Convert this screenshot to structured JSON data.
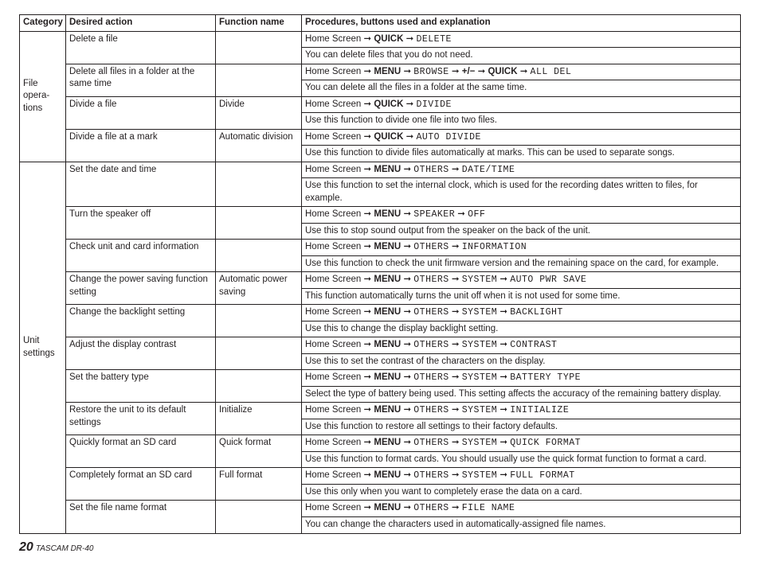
{
  "headers": {
    "category": "Category",
    "action": "Desired action",
    "func": "Function name",
    "proc": "Procedures, buttons used and explanation"
  },
  "groups": [
    {
      "category": "File opera­tions",
      "rows": [
        {
          "action": "Delete a file",
          "func": "",
          "path": [
            [
              "t",
              "Home Screen "
            ],
            [
              "a",
              " "
            ],
            [
              "b",
              "QUICK"
            ],
            [
              "a",
              " "
            ],
            [
              "m",
              "DELETE"
            ]
          ],
          "expl": "You can delete files that you do not need."
        },
        {
          "action": "Delete all files in a folder at the same time",
          "func": "",
          "path": [
            [
              "t",
              "Home Screen "
            ],
            [
              "a",
              " "
            ],
            [
              "b",
              "MENU"
            ],
            [
              "a",
              " "
            ],
            [
              "m",
              "BROWSE"
            ],
            [
              "a",
              " "
            ],
            [
              "b",
              "+/−"
            ],
            [
              "a",
              " "
            ],
            [
              "b",
              "QUICK"
            ],
            [
              "a",
              " "
            ],
            [
              "m",
              "ALL DEL"
            ]
          ],
          "expl": "You can delete all the files in a folder at the same time."
        },
        {
          "action": "Divide a file",
          "func": "Divide",
          "path": [
            [
              "t",
              "Home Screen "
            ],
            [
              "a",
              " "
            ],
            [
              "b",
              "QUICK"
            ],
            [
              "a",
              " "
            ],
            [
              "m",
              "DIVIDE"
            ]
          ],
          "expl": "Use this function to divide one file into two files."
        },
        {
          "action": "Divide a file at a mark",
          "func": "Automatic division",
          "path": [
            [
              "t",
              "Home Screen "
            ],
            [
              "a",
              " "
            ],
            [
              "b",
              "QUICK"
            ],
            [
              "a",
              " "
            ],
            [
              "m",
              "AUTO DIVIDE"
            ]
          ],
          "expl": "Use this function to divide files automatically at marks. This can be used to separate songs."
        }
      ]
    },
    {
      "category": "Unit settings",
      "rows": [
        {
          "action": "Set the date and time",
          "func": "",
          "path": [
            [
              "t",
              "Home Screen "
            ],
            [
              "a",
              " "
            ],
            [
              "b",
              "MENU"
            ],
            [
              "a",
              " "
            ],
            [
              "m",
              "OTHERS"
            ],
            [
              "a",
              " "
            ],
            [
              "m",
              "DATE/TIME"
            ]
          ],
          "expl": "Use this function to set the internal clock, which is used for the recording dates written to files, for example."
        },
        {
          "action": "Turn the speaker off",
          "func": "",
          "path": [
            [
              "t",
              "Home Screen "
            ],
            [
              "a",
              " "
            ],
            [
              "b",
              "MENU"
            ],
            [
              "a",
              " "
            ],
            [
              "m",
              "SPEAKER"
            ],
            [
              "a",
              " "
            ],
            [
              "m",
              "OFF"
            ]
          ],
          "expl": "Use this to stop sound output from the speaker on the back of the unit."
        },
        {
          "action": "Check unit and card information",
          "func": "",
          "path": [
            [
              "t",
              "Home Screen "
            ],
            [
              "a",
              " "
            ],
            [
              "b",
              "MENU"
            ],
            [
              "a",
              " "
            ],
            [
              "m",
              "OTHERS"
            ],
            [
              "a",
              " "
            ],
            [
              "m",
              "INFORMATION"
            ]
          ],
          "expl": "Use this function to check the unit firmware version and the remaining space on the card, for example."
        },
        {
          "action": "Change the power saving function setting",
          "func": "Automatic power saving",
          "path": [
            [
              "t",
              "Home Screen "
            ],
            [
              "a",
              " "
            ],
            [
              "b",
              "MENU"
            ],
            [
              "a",
              " "
            ],
            [
              "m",
              "OTHERS"
            ],
            [
              "a",
              " "
            ],
            [
              "m",
              "SYSTEM"
            ],
            [
              "a",
              " "
            ],
            [
              "m",
              "AUTO PWR SAVE"
            ]
          ],
          "expl": "This function automatically turns the unit off when it is not used for some time."
        },
        {
          "action": "Change the backlight setting",
          "func": "",
          "path": [
            [
              "t",
              "Home Screen "
            ],
            [
              "a",
              " "
            ],
            [
              "b",
              "MENU"
            ],
            [
              "a",
              " "
            ],
            [
              "m",
              "OTHERS"
            ],
            [
              "a",
              " "
            ],
            [
              "m",
              "SYSTEM"
            ],
            [
              "a",
              " "
            ],
            [
              "m",
              "BACKLIGHT"
            ]
          ],
          "expl": "Use this to change the display backlight setting."
        },
        {
          "action": "Adjust the display contrast",
          "func": "",
          "path": [
            [
              "t",
              "Home Screen "
            ],
            [
              "a",
              " "
            ],
            [
              "b",
              "MENU"
            ],
            [
              "a",
              " "
            ],
            [
              "m",
              "OTHERS"
            ],
            [
              "a",
              " "
            ],
            [
              "m",
              "SYSTEM"
            ],
            [
              "a",
              " "
            ],
            [
              "m",
              "CONTRAST"
            ]
          ],
          "expl": "Use this to set the contrast of the characters on the display."
        },
        {
          "action": "Set the battery type",
          "func": "",
          "path": [
            [
              "t",
              "Home Screen "
            ],
            [
              "a",
              " "
            ],
            [
              "b",
              "MENU"
            ],
            [
              "a",
              " "
            ],
            [
              "m",
              "OTHERS"
            ],
            [
              "a",
              " "
            ],
            [
              "m",
              "SYSTEM"
            ],
            [
              "a",
              " "
            ],
            [
              "m",
              "BATTERY TYPE"
            ]
          ],
          "expl": "Select the type of battery being used. This setting affects the accuracy of the remaining battery display."
        },
        {
          "action": "Restore the unit to its default settings",
          "func": "Initialize",
          "path": [
            [
              "t",
              "Home Screen "
            ],
            [
              "a",
              " "
            ],
            [
              "b",
              "MENU"
            ],
            [
              "a",
              " "
            ],
            [
              "m",
              "OTHERS"
            ],
            [
              "a",
              " "
            ],
            [
              "m",
              "SYSTEM"
            ],
            [
              "a",
              " "
            ],
            [
              "m",
              "INITIALIZE"
            ]
          ],
          "expl": "Use this function to restore all settings to their factory defaults."
        },
        {
          "action": "Quickly format an SD card",
          "func": "Quick format",
          "path": [
            [
              "t",
              "Home Screen "
            ],
            [
              "a",
              " "
            ],
            [
              "b",
              "MENU"
            ],
            [
              "a",
              " "
            ],
            [
              "m",
              "OTHERS"
            ],
            [
              "a",
              " "
            ],
            [
              "m",
              "SYSTEM"
            ],
            [
              "a",
              " "
            ],
            [
              "m",
              "QUICK FORMAT"
            ]
          ],
          "expl": "Use this function to format cards. You should usually use the quick format function to format a card."
        },
        {
          "action": "Completely format an SD card",
          "func": "Full format",
          "path": [
            [
              "t",
              "Home Screen "
            ],
            [
              "a",
              " "
            ],
            [
              "b",
              "MENU"
            ],
            [
              "a",
              " "
            ],
            [
              "m",
              "OTHERS"
            ],
            [
              "a",
              " "
            ],
            [
              "m",
              "SYSTEM"
            ],
            [
              "a",
              " "
            ],
            [
              "m",
              "FULL FORMAT"
            ]
          ],
          "expl": "Use this only when you want to completely erase the data on a card."
        },
        {
          "action": "Set the file name format",
          "func": "",
          "path": [
            [
              "t",
              "Home Screen "
            ],
            [
              "a",
              " "
            ],
            [
              "b",
              "MENU"
            ],
            [
              "a",
              " "
            ],
            [
              "m",
              "OTHERS"
            ],
            [
              "a",
              " "
            ],
            [
              "m",
              "FILE NAME"
            ]
          ],
          "expl": "You can change the characters used in automatically-assigned file names."
        }
      ]
    }
  ],
  "footer": {
    "page": "20",
    "model": "TASCAM DR-40"
  },
  "arrow_glyph": "➞"
}
